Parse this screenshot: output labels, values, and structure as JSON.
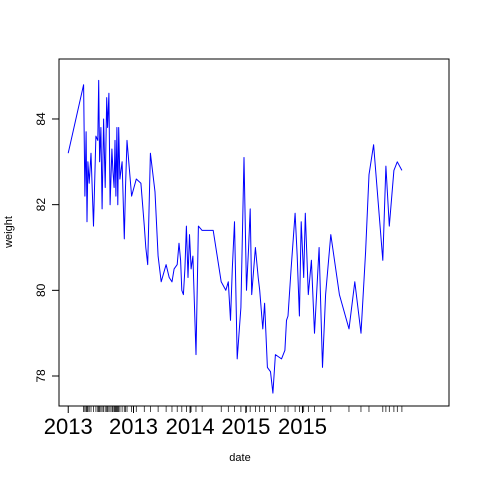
{
  "chart_data": {
    "type": "line",
    "title": "",
    "xlabel": "date",
    "ylabel": "weight",
    "ylim": [
      77.3,
      85.4
    ],
    "xlim": [
      "2012-09-01",
      "2016-02-20"
    ],
    "y_ticks": [
      78,
      80,
      82,
      84
    ],
    "x_tick_labels": [
      {
        "date": "2012-10-01",
        "label": "2013"
      },
      {
        "date": "2013-05-01",
        "label": "2013"
      },
      {
        "date": "2013-11-01",
        "label": "2014"
      },
      {
        "date": "2014-05-01",
        "label": "2015"
      },
      {
        "date": "2014-11-01",
        "label": "2015"
      }
    ],
    "grid": false,
    "legend": "none",
    "series_color": "#0000ff",
    "series": [
      {
        "x": [
          "2012-10-01",
          "2012-11-20",
          "2012-11-24",
          "2012-11-28",
          "2012-12-01",
          "2012-12-04",
          "2012-12-08",
          "2012-12-14",
          "2012-12-22",
          "2012-12-30",
          "2013-01-05",
          "2013-01-08",
          "2013-01-11",
          "2013-01-15",
          "2013-01-19",
          "2013-01-24",
          "2013-01-29",
          "2013-02-03",
          "2013-02-06",
          "2013-02-10",
          "2013-02-14",
          "2013-02-20",
          "2013-02-23",
          "2013-02-27",
          "2013-03-02",
          "2013-03-05",
          "2013-03-08",
          "2013-03-11",
          "2013-03-14",
          "2013-03-18",
          "2013-03-25",
          "2013-04-01",
          "2013-04-05",
          "2013-04-10",
          "2013-04-25",
          "2013-05-10",
          "2013-05-25",
          "2013-06-05",
          "2013-06-10",
          "2013-06-16",
          "2013-06-25",
          "2013-07-10",
          "2013-07-20",
          "2013-07-30",
          "2013-08-15",
          "2013-08-25",
          "2013-09-03",
          "2013-09-10",
          "2013-09-20",
          "2013-09-26",
          "2013-10-01",
          "2013-10-05",
          "2013-10-10",
          "2013-10-15",
          "2013-10-20",
          "2013-10-25",
          "2013-10-30",
          "2013-11-04",
          "2013-11-10",
          "2013-11-20",
          "2013-11-28",
          "2013-12-10",
          "2014-01-15",
          "2014-02-10",
          "2014-02-25",
          "2014-03-05",
          "2014-03-12",
          "2014-03-18",
          "2014-03-25",
          "2014-04-03",
          "2014-04-15",
          "2014-04-25",
          "2014-05-03",
          "2014-05-10",
          "2014-05-15",
          "2014-05-20",
          "2014-06-01",
          "2014-06-10",
          "2014-06-15",
          "2014-06-25",
          "2014-07-01",
          "2014-07-10",
          "2014-07-20",
          "2014-07-28",
          "2014-08-05",
          "2014-08-25",
          "2014-09-05",
          "2014-09-10",
          "2014-09-15",
          "2014-09-25",
          "2014-10-08",
          "2014-10-15",
          "2014-10-22",
          "2014-10-28",
          "2014-11-05",
          "2014-11-10",
          "2014-11-20",
          "2014-11-30",
          "2014-12-10",
          "2014-12-25",
          "2015-01-05",
          "2015-01-15",
          "2015-02-01",
          "2015-03-01",
          "2015-04-01",
          "2015-04-20",
          "2015-05-10",
          "2015-05-25",
          "2015-06-05",
          "2015-06-20",
          "2015-07-20",
          "2015-07-30",
          "2015-08-10",
          "2015-08-25",
          "2015-09-05",
          "2015-09-20"
        ],
        "y": [
          83.2,
          84.8,
          82.2,
          83.7,
          81.6,
          83.0,
          82.5,
          83.2,
          81.5,
          83.6,
          83.5,
          84.9,
          83.0,
          83.8,
          81.9,
          84.0,
          82.4,
          84.5,
          83.8,
          84.6,
          82.0,
          83.3,
          82.8,
          82.4,
          83.5,
          82.2,
          83.8,
          82.0,
          83.8,
          82.6,
          83.0,
          81.2,
          82.4,
          83.5,
          82.2,
          82.6,
          82.5,
          81.5,
          81.0,
          80.6,
          83.2,
          82.3,
          80.8,
          80.2,
          80.6,
          80.3,
          80.2,
          80.5,
          80.6,
          81.1,
          80.7,
          80.0,
          79.9,
          80.5,
          81.5,
          80.3,
          81.3,
          80.5,
          80.8,
          78.5,
          81.5,
          81.4,
          81.4,
          80.2,
          80.0,
          80.2,
          79.3,
          80.5,
          81.6,
          78.4,
          79.6,
          83.1,
          80.0,
          81.0,
          81.9,
          79.9,
          81.0,
          80.3,
          80.0,
          79.1,
          79.7,
          78.2,
          78.1,
          77.6,
          78.5,
          78.4,
          78.6,
          79.3,
          79.4,
          80.5,
          81.8,
          80.8,
          79.4,
          81.6,
          80.3,
          81.8,
          79.9,
          80.7,
          79.0,
          81.0,
          78.2,
          79.9,
          81.3,
          79.9,
          79.1,
          80.2,
          79.0,
          80.9,
          82.7,
          83.4,
          80.7,
          82.9,
          81.5,
          82.8,
          83.0,
          82.8
        ]
      }
    ],
    "rug_dates": [
      "2012-11-20",
      "2012-11-24",
      "2012-11-28",
      "2012-12-01",
      "2012-12-04",
      "2012-12-08",
      "2012-12-14",
      "2012-12-22",
      "2012-12-30",
      "2013-01-05",
      "2013-01-08",
      "2013-01-11",
      "2013-01-15",
      "2013-01-19",
      "2013-01-24",
      "2013-01-29",
      "2013-02-03",
      "2013-02-06",
      "2013-02-10",
      "2013-02-14",
      "2013-02-20",
      "2013-02-23",
      "2013-02-27",
      "2013-03-02",
      "2013-03-05",
      "2013-03-08",
      "2013-03-11",
      "2013-03-14",
      "2013-03-18",
      "2013-03-25",
      "2013-04-01",
      "2013-04-05",
      "2013-04-10",
      "2013-04-25",
      "2013-05-10",
      "2013-06-05",
      "2013-06-25",
      "2013-07-20",
      "2013-08-15",
      "2013-09-03",
      "2013-09-20",
      "2013-10-05",
      "2013-10-20",
      "2013-11-04",
      "2013-11-20",
      "2013-12-10",
      "2014-02-10",
      "2014-03-05",
      "2014-03-25",
      "2014-04-15",
      "2014-05-03",
      "2014-05-15",
      "2014-06-01",
      "2014-06-15",
      "2014-07-01",
      "2014-07-20",
      "2014-08-05",
      "2014-09-05",
      "2014-09-15",
      "2014-10-08",
      "2014-10-22",
      "2014-11-05",
      "2014-11-20",
      "2014-12-10",
      "2015-01-05",
      "2015-02-01",
      "2015-04-01",
      "2015-05-10",
      "2015-06-05",
      "2015-07-20",
      "2015-07-30",
      "2015-08-10",
      "2015-08-25",
      "2015-09-05",
      "2015-09-20"
    ]
  }
}
